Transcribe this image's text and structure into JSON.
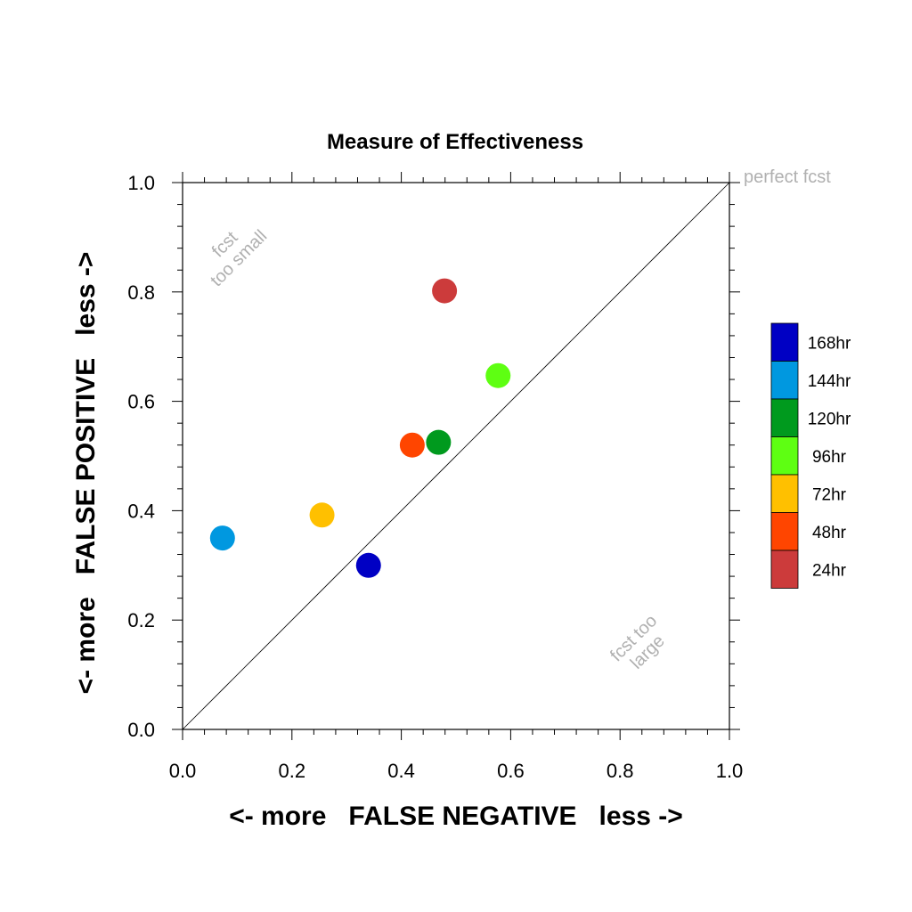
{
  "chart_data": {
    "type": "scatter",
    "title": "Measure of Effectiveness",
    "xlabel": "<- more   FALSE NEGATIVE   less ->",
    "ylabel": "<- more   FALSE POSITIVE   less ->",
    "xlim": [
      0.0,
      1.0
    ],
    "ylim": [
      0.0,
      1.0
    ],
    "xticks": [
      "0.0",
      "0.2",
      "0.4",
      "0.6",
      "0.8",
      "1.0"
    ],
    "yticks": [
      "0.0",
      "0.2",
      "0.4",
      "0.6",
      "0.8",
      "1.0"
    ],
    "grid": false,
    "legend_position": "right",
    "reference_line": {
      "from": [
        0,
        0
      ],
      "to": [
        1,
        1
      ]
    },
    "annotations": {
      "perfect": "perfect fcst",
      "too_small": [
        "fcst",
        "too small"
      ],
      "too_large": [
        "fcst too",
        "large"
      ]
    },
    "series": [
      {
        "name": "168hr",
        "color": "#0000c4",
        "x": 0.34,
        "y": 0.3
      },
      {
        "name": "144hr",
        "color": "#0098e0",
        "x": 0.073,
        "y": 0.35
      },
      {
        "name": "120hr",
        "color": "#009a1e",
        "x": 0.468,
        "y": 0.525
      },
      {
        "name": "96hr",
        "color": "#5eff12",
        "x": 0.577,
        "y": 0.647
      },
      {
        "name": "72hr",
        "color": "#ffc000",
        "x": 0.255,
        "y": 0.392
      },
      {
        "name": "48hr",
        "color": "#ff4500",
        "x": 0.42,
        "y": 0.52
      },
      {
        "name": "24hr",
        "color": "#cc3b3b",
        "x": 0.479,
        "y": 0.802
      }
    ]
  }
}
